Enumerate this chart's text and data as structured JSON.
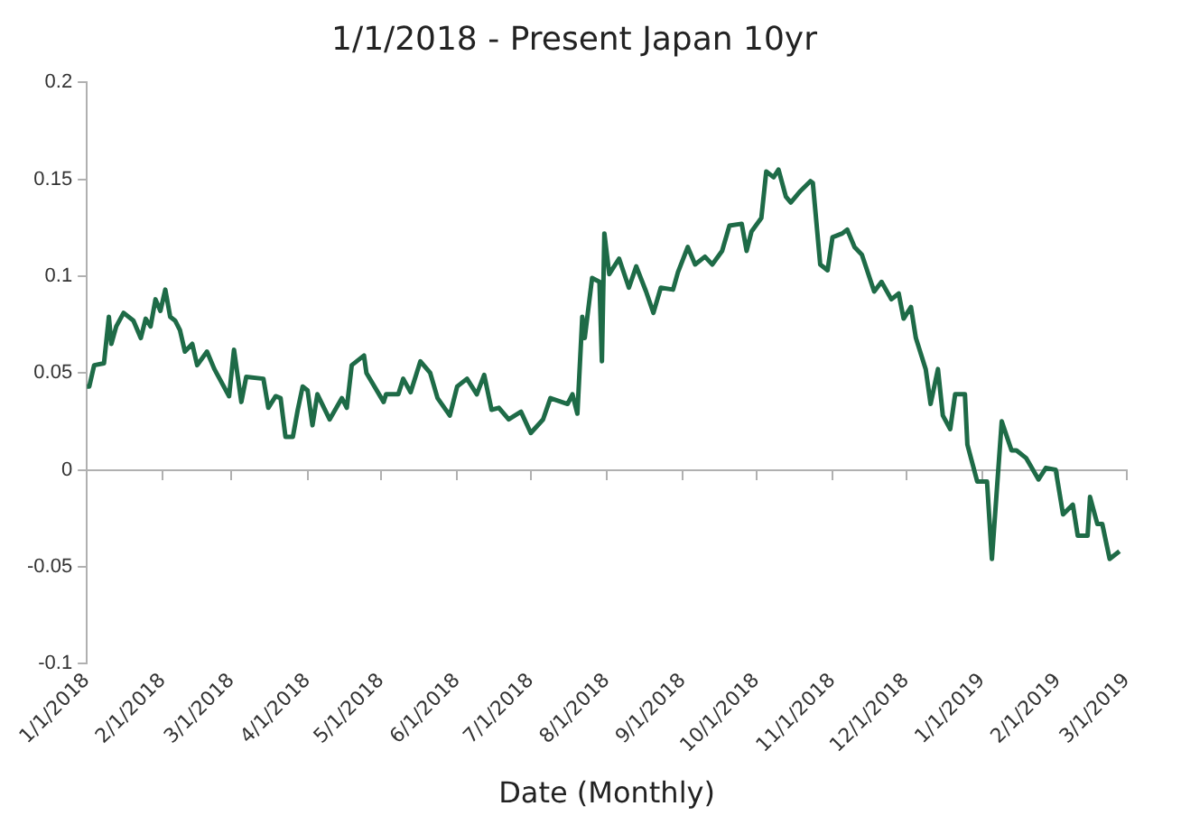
{
  "chart_data": {
    "type": "line",
    "title": "1/1/2018 - Present Japan 10yr",
    "xlabel": "Date (Monthly)",
    "x": [
      "2018-01-01",
      "2018-01-02",
      "2018-01-04",
      "2018-01-08",
      "2018-01-10",
      "2018-01-11",
      "2018-01-13",
      "2018-01-16",
      "2018-01-20",
      "2018-01-23",
      "2018-01-25",
      "2018-01-27",
      "2018-01-29",
      "2018-01-31",
      "2018-02-02",
      "2018-02-04",
      "2018-02-06",
      "2018-02-08",
      "2018-02-10",
      "2018-02-13",
      "2018-02-15",
      "2018-02-19",
      "2018-02-22",
      "2018-02-28",
      "2018-03-02",
      "2018-03-05",
      "2018-03-07",
      "2018-03-14",
      "2018-03-16",
      "2018-03-19",
      "2018-03-21",
      "2018-03-23",
      "2018-03-26",
      "2018-03-28",
      "2018-03-30",
      "2018-04-01",
      "2018-04-03",
      "2018-04-05",
      "2018-04-10",
      "2018-04-15",
      "2018-04-17",
      "2018-04-19",
      "2018-04-24",
      "2018-04-25",
      "2018-05-02",
      "2018-05-03",
      "2018-05-08",
      "2018-05-10",
      "2018-05-13",
      "2018-05-17",
      "2018-05-21",
      "2018-05-24",
      "2018-05-29",
      "2018-06-01",
      "2018-06-05",
      "2018-06-09",
      "2018-06-12",
      "2018-06-15",
      "2018-06-18",
      "2018-06-22",
      "2018-06-27",
      "2018-07-01",
      "2018-07-06",
      "2018-07-09",
      "2018-07-16",
      "2018-07-18",
      "2018-07-20",
      "2018-07-21",
      "2018-07-22",
      "2018-07-23",
      "2018-07-26",
      "2018-07-29",
      "2018-07-30",
      "2018-07-31",
      "2018-08-02",
      "2018-08-06",
      "2018-08-10",
      "2018-08-13",
      "2018-08-17",
      "2018-08-20",
      "2018-08-23",
      "2018-08-28",
      "2018-08-30",
      "2018-09-03",
      "2018-09-06",
      "2018-09-10",
      "2018-09-13",
      "2018-09-17",
      "2018-09-20",
      "2018-09-25",
      "2018-09-27",
      "2018-09-29",
      "2018-10-03",
      "2018-10-05",
      "2018-10-08",
      "2018-10-10",
      "2018-10-13",
      "2018-10-15",
      "2018-10-19",
      "2018-10-23",
      "2018-10-24",
      "2018-10-27",
      "2018-10-30",
      "2018-11-01",
      "2018-11-05",
      "2018-11-07",
      "2018-11-10",
      "2018-11-13",
      "2018-11-18",
      "2018-11-21",
      "2018-11-25",
      "2018-11-28",
      "2018-11-30",
      "2018-12-03",
      "2018-12-05",
      "2018-12-09",
      "2018-12-11",
      "2018-12-14",
      "2018-12-16",
      "2018-12-19",
      "2018-12-21",
      "2018-12-25",
      "2018-12-26",
      "2018-12-30",
      "2019-01-03",
      "2019-01-05",
      "2019-01-09",
      "2019-01-13",
      "2019-01-15",
      "2019-01-19",
      "2019-01-24",
      "2019-01-27",
      "2019-01-31",
      "2019-02-03",
      "2019-02-07",
      "2019-02-09",
      "2019-02-13",
      "2019-02-14",
      "2019-02-17",
      "2019-02-19",
      "2019-02-22",
      "2019-02-26"
    ],
    "series": [
      {
        "color": "#1e6b47",
        "values": [
          0.043,
          0.043,
          0.054,
          0.055,
          0.079,
          0.065,
          0.074,
          0.081,
          0.077,
          0.068,
          0.078,
          0.074,
          0.088,
          0.082,
          0.093,
          0.079,
          0.077,
          0.072,
          0.061,
          0.065,
          0.054,
          0.061,
          0.052,
          0.038,
          0.062,
          0.035,
          0.048,
          0.047,
          0.032,
          0.038,
          0.037,
          0.017,
          0.017,
          0.031,
          0.043,
          0.041,
          0.023,
          0.039,
          0.026,
          0.037,
          0.032,
          0.054,
          0.059,
          0.05,
          0.035,
          0.039,
          0.039,
          0.047,
          0.04,
          0.056,
          0.05,
          0.037,
          0.028,
          0.043,
          0.047,
          0.039,
          0.049,
          0.031,
          0.032,
          0.026,
          0.03,
          0.019,
          0.026,
          0.037,
          0.034,
          0.039,
          0.029,
          0.054,
          0.079,
          0.068,
          0.099,
          0.097,
          0.056,
          0.122,
          0.101,
          0.109,
          0.094,
          0.105,
          0.092,
          0.081,
          0.094,
          0.093,
          0.102,
          0.115,
          0.106,
          0.11,
          0.106,
          0.113,
          0.126,
          0.127,
          0.113,
          0.123,
          0.13,
          0.154,
          0.151,
          0.155,
          0.141,
          0.138,
          0.144,
          0.149,
          0.148,
          0.106,
          0.103,
          0.12,
          0.122,
          0.124,
          0.115,
          0.111,
          0.092,
          0.097,
          0.088,
          0.091,
          0.078,
          0.084,
          0.068,
          0.052,
          0.034,
          0.052,
          0.028,
          0.021,
          0.039,
          0.039,
          0.013,
          -0.006,
          -0.006,
          -0.046,
          0.025,
          0.01,
          0.01,
          0.006,
          -0.005,
          0.001,
          0,
          -0.023,
          -0.018,
          -0.034,
          -0.034,
          -0.014,
          -0.028,
          -0.028,
          -0.046,
          -0.042
        ]
      }
    ],
    "xlim": [
      "2018-01-01",
      "2019-03-01"
    ],
    "xticks": [
      {
        "value": "2018-01-01",
        "label": "1/1/2018"
      },
      {
        "value": "2018-02-01",
        "label": "2/1/2018"
      },
      {
        "value": "2018-03-01",
        "label": "3/1/2018"
      },
      {
        "value": "2018-04-01",
        "label": "4/1/2018"
      },
      {
        "value": "2018-05-01",
        "label": "5/1/2018"
      },
      {
        "value": "2018-06-01",
        "label": "6/1/2018"
      },
      {
        "value": "2018-07-01",
        "label": "7/1/2018"
      },
      {
        "value": "2018-08-01",
        "label": "8/1/2018"
      },
      {
        "value": "2018-09-01",
        "label": "9/1/2018"
      },
      {
        "value": "2018-10-01",
        "label": "10/1/2018"
      },
      {
        "value": "2018-11-01",
        "label": "11/1/2018"
      },
      {
        "value": "2018-12-01",
        "label": "12/1/2018"
      },
      {
        "value": "2019-01-01",
        "label": "1/1/2019"
      },
      {
        "value": "2019-02-01",
        "label": "2/1/2019"
      },
      {
        "value": "2019-03-01",
        "label": "3/1/2019"
      }
    ],
    "ylim": [
      -0.1,
      0.2
    ],
    "yticks": [
      -0.1,
      -0.05,
      0,
      0.05,
      0.1,
      0.15,
      0.2
    ],
    "legend": false,
    "marker": "none",
    "line_style": "solid"
  }
}
